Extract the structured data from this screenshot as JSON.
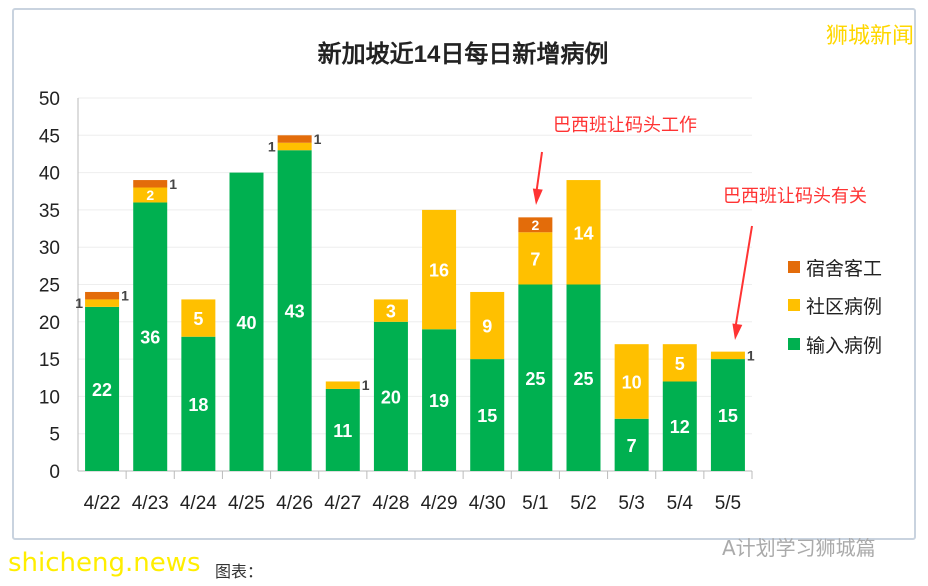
{
  "watermarks": {
    "top_right": "狮城新闻",
    "bottom_left": "shicheng.news",
    "bottom_right": "A计划学习狮城篇",
    "caption": "图表："
  },
  "chart_data": {
    "type": "bar",
    "stacked": true,
    "title": "新加坡近14日每日新增病例",
    "categories": [
      "4/22",
      "4/23",
      "4/24",
      "4/25",
      "4/26",
      "4/27",
      "4/28",
      "4/29",
      "4/30",
      "5/1",
      "5/2",
      "5/3",
      "5/4",
      "5/5"
    ],
    "series": [
      {
        "name": "输入病例",
        "color": "#00b050",
        "values": [
          22,
          36,
          18,
          40,
          43,
          11,
          20,
          19,
          15,
          25,
          25,
          7,
          12,
          15
        ]
      },
      {
        "name": "社区病例",
        "color": "#ffc000",
        "values": [
          1,
          2,
          5,
          0,
          1,
          1,
          3,
          16,
          9,
          7,
          14,
          10,
          5,
          1
        ]
      },
      {
        "name": "宿舍客工",
        "color": "#e36c0a",
        "values": [
          1,
          1,
          0,
          0,
          1,
          0,
          0,
          0,
          0,
          2,
          0,
          0,
          0,
          0
        ]
      }
    ],
    "ylim": [
      0,
      50
    ],
    "yticks": [
      0,
      5,
      10,
      15,
      20,
      25,
      30,
      35,
      40,
      45,
      50
    ],
    "grid": true,
    "legend": "right",
    "annotations": [
      {
        "text": "巴西班让码头工作",
        "category": "5/1",
        "color": "#ff3333"
      },
      {
        "text": "巴西班让码头有关",
        "category": "5/5",
        "color": "#ff3333"
      }
    ]
  }
}
